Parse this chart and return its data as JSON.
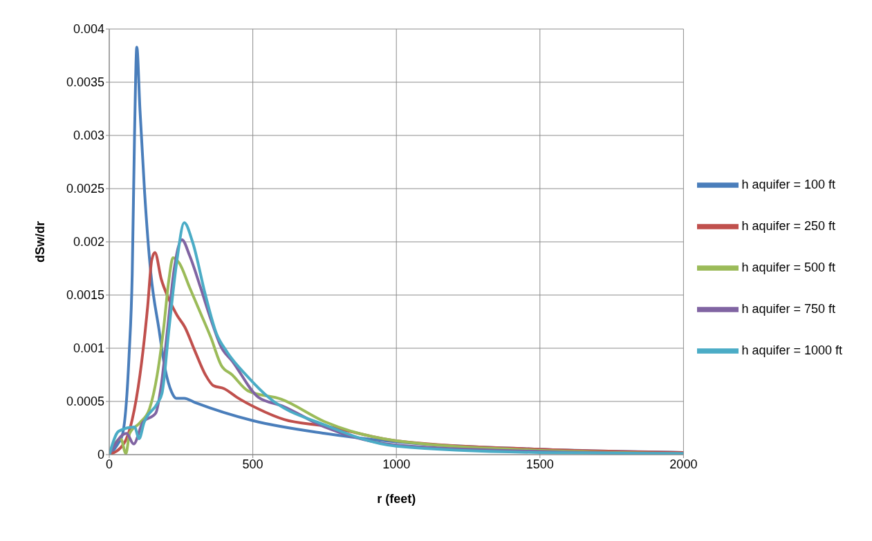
{
  "chart_data": {
    "type": "line",
    "xlabel": "r (feet)",
    "ylabel": "dSw/dr",
    "xlim": [
      0,
      2000
    ],
    "ylim": [
      0,
      0.004
    ],
    "xticks": [
      0,
      500,
      1000,
      1500,
      2000
    ],
    "yticks": [
      0,
      0.0005,
      0.001,
      0.0015,
      0.002,
      0.0025,
      0.003,
      0.0035,
      0.004
    ],
    "grid": true,
    "legend": "right",
    "marker": "none",
    "line_style": "solid",
    "series": [
      {
        "name": "h aquifer = 100 ft",
        "color": "#4a7ebb",
        "x": [
          0,
          30,
          47,
          69,
          80,
          88,
          96,
          107,
          123,
          145,
          173,
          195,
          217,
          233,
          261,
          299,
          500,
          750,
          1000,
          1500,
          2000
        ],
        "values": [
          0,
          0.0001,
          0.0002,
          0.00093,
          0.0017,
          0.003,
          0.00383,
          0.00324,
          0.00247,
          0.0017,
          0.00118,
          0.0008,
          0.00059,
          0.00053,
          0.00053,
          0.00049,
          0.00032,
          0.0002,
          0.00012,
          5e-05,
          2e-05
        ]
      },
      {
        "name": "h aquifer = 250 ft",
        "color": "#c0504d",
        "x": [
          0,
          50,
          80,
          107,
          134,
          148,
          159,
          181,
          208,
          236,
          263,
          299,
          335,
          362,
          400,
          444,
          519,
          609,
          750,
          1000,
          1500,
          2000
        ],
        "values": [
          0,
          0.0001,
          0.00033,
          0.00075,
          0.0014,
          0.00183,
          0.0019,
          0.00165,
          0.00146,
          0.00131,
          0.0012,
          0.00097,
          0.00075,
          0.00065,
          0.00062,
          0.00054,
          0.00043,
          0.00033,
          0.00027,
          0.00013,
          5e-05,
          2e-05
        ]
      },
      {
        "name": "h aquifer = 500 ft",
        "color": "#9bbb59",
        "x": [
          0,
          40,
          58,
          71,
          107,
          140,
          167,
          189,
          208,
          222,
          244,
          280,
          318,
          354,
          390,
          428,
          483,
          600,
          750,
          1000,
          1500,
          2000
        ],
        "values": [
          0,
          0.00015,
          1e-05,
          0.0002,
          0.0003,
          0.00043,
          0.00075,
          0.00118,
          0.00165,
          0.00185,
          0.0018,
          0.00157,
          0.00133,
          0.0011,
          0.00084,
          0.00075,
          0.0006,
          0.00052,
          0.00031,
          0.00013,
          4e-05,
          1e-05
        ]
      },
      {
        "name": "h aquifer = 750 ft",
        "color": "#8064a2",
        "x": [
          0,
          60,
          85,
          116,
          162,
          181,
          203,
          225,
          253,
          280,
          318,
          354,
          390,
          428,
          519,
          600,
          750,
          1000,
          1500,
          2000
        ],
        "values": [
          0,
          0.0002,
          0.0001,
          0.0003,
          0.00039,
          0.00065,
          0.00118,
          0.00172,
          0.00202,
          0.00187,
          0.00157,
          0.00127,
          0.00101,
          0.00088,
          0.00054,
          0.00046,
          0.00026,
          9e-05,
          3e-05,
          1e-05
        ]
      },
      {
        "name": "h aquifer = 1000 ft",
        "color": "#4bacc6",
        "x": [
          0,
          33,
          88,
          104,
          121,
          167,
          184,
          208,
          236,
          261,
          290,
          335,
          373,
          409,
          483,
          554,
          750,
          1000,
          1500,
          2000
        ],
        "values": [
          0,
          0.00022,
          0.00026,
          0.00015,
          0.0003,
          0.00048,
          0.00058,
          0.00118,
          0.00183,
          0.00218,
          0.002,
          0.0015,
          0.00114,
          0.00097,
          0.00073,
          0.00054,
          0.00028,
          8e-05,
          2e-05,
          1e-05
        ]
      }
    ]
  }
}
